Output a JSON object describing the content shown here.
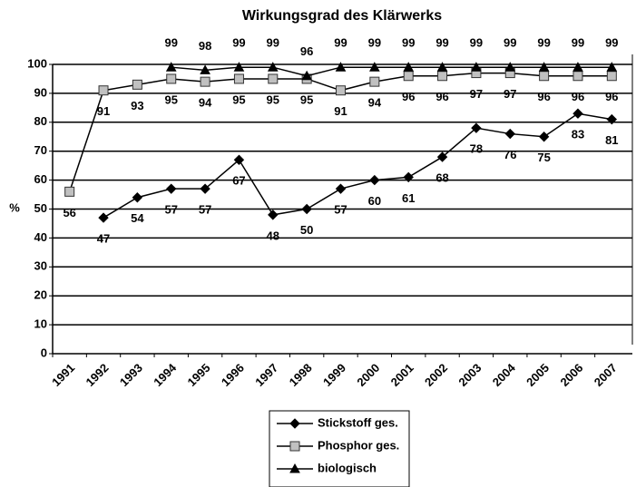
{
  "chart_data": {
    "type": "line",
    "title": "Wirkungsgrad des Klärwerks",
    "y_label": "%",
    "categories": [
      "1991",
      "1992",
      "1993",
      "1994",
      "1995",
      "1996",
      "1997",
      "1998",
      "1999",
      "2000",
      "2001",
      "2002",
      "2003",
      "2004",
      "2005",
      "2006",
      "2007"
    ],
    "series": [
      {
        "name": "Stickstoff ges.",
        "color": "#000000",
        "marker": "diamond",
        "label_position": "below",
        "values": [
          null,
          47,
          54,
          57,
          57,
          67,
          48,
          50,
          57,
          60,
          61,
          68,
          78,
          76,
          75,
          83,
          81
        ]
      },
      {
        "name": "Phosphor ges.",
        "color": "#c0c0c0",
        "marker": "square",
        "label_position": "below",
        "values": [
          56,
          91,
          93,
          95,
          94,
          95,
          95,
          95,
          91,
          94,
          96,
          96,
          97,
          97,
          96,
          96,
          96
        ]
      },
      {
        "name": "biologisch",
        "color": "#000000",
        "marker": "triangle",
        "label_position": "above",
        "values": [
          null,
          null,
          null,
          99,
          98,
          99,
          99,
          96,
          99,
          99,
          99,
          99,
          99,
          99,
          99,
          99,
          99
        ]
      }
    ],
    "ylim": [
      0,
      100
    ],
    "yticks": [
      0,
      10,
      20,
      30,
      40,
      50,
      60,
      70,
      80,
      90,
      100
    ],
    "grid": true,
    "legend": "bottom"
  }
}
